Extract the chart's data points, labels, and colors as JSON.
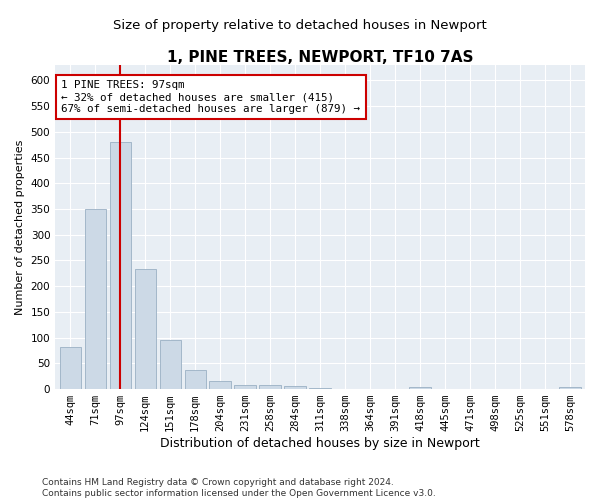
{
  "title": "1, PINE TREES, NEWPORT, TF10 7AS",
  "subtitle": "Size of property relative to detached houses in Newport",
  "xlabel": "Distribution of detached houses by size in Newport",
  "ylabel": "Number of detached properties",
  "categories": [
    "44sqm",
    "71sqm",
    "97sqm",
    "124sqm",
    "151sqm",
    "178sqm",
    "204sqm",
    "231sqm",
    "258sqm",
    "284sqm",
    "311sqm",
    "338sqm",
    "364sqm",
    "391sqm",
    "418sqm",
    "445sqm",
    "471sqm",
    "498sqm",
    "525sqm",
    "551sqm",
    "578sqm"
  ],
  "values": [
    82,
    350,
    480,
    234,
    96,
    38,
    16,
    8,
    8,
    6,
    2,
    0,
    0,
    0,
    5,
    0,
    0,
    0,
    0,
    0,
    5
  ],
  "bar_color": "#ccd9e6",
  "bar_edge_color": "#9ab0c4",
  "vline_x": 2,
  "vline_color": "#cc0000",
  "annotation_text": "1 PINE TREES: 97sqm\n← 32% of detached houses are smaller (415)\n67% of semi-detached houses are larger (879) →",
  "annotation_box_color": "#ffffff",
  "annotation_box_edge_color": "#cc0000",
  "ylim": [
    0,
    630
  ],
  "yticks": [
    0,
    50,
    100,
    150,
    200,
    250,
    300,
    350,
    400,
    450,
    500,
    550,
    600
  ],
  "footer": "Contains HM Land Registry data © Crown copyright and database right 2024.\nContains public sector information licensed under the Open Government Licence v3.0.",
  "plot_bg_color": "#e8eef4",
  "title_fontsize": 11,
  "subtitle_fontsize": 9.5,
  "xlabel_fontsize": 9,
  "ylabel_fontsize": 8,
  "tick_fontsize": 7.5,
  "footer_fontsize": 6.5
}
